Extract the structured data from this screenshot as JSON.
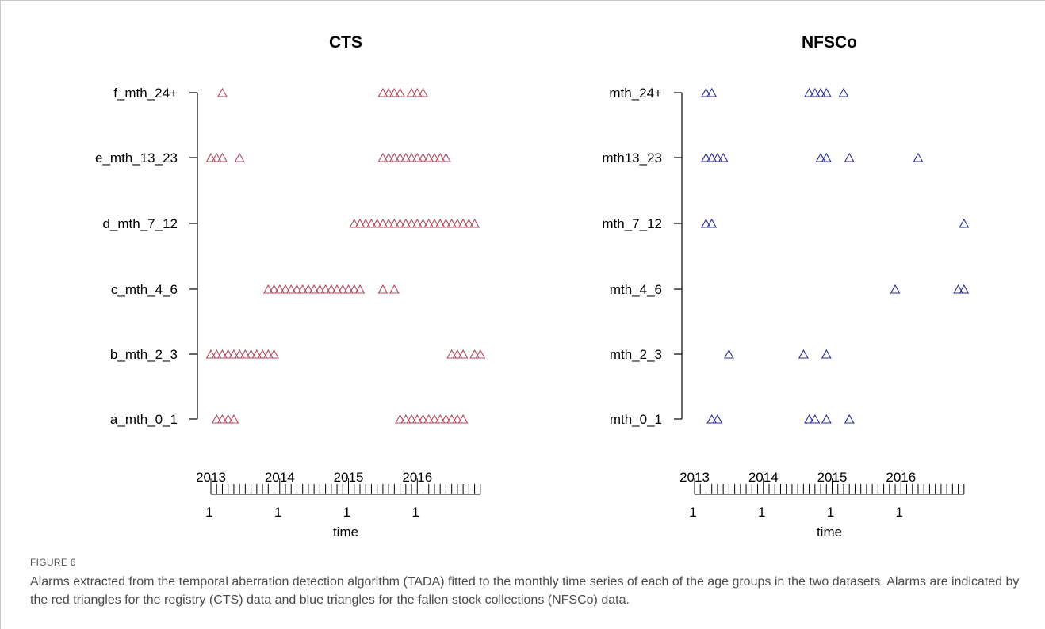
{
  "figure": {
    "label": "FIGURE 6",
    "caption": "Alarms extracted from the temporal aberration detection algorithm (TADA) fitted to the monthly time series of each of the age groups in the two datasets. Alarms are indicated by the red triangles for the registry (CTS) data and blue triangles for the fallen stock collections (NFSCo) data."
  },
  "chart_data": [
    {
      "type": "scatter",
      "title": "CTS",
      "xlabel": "time",
      "marker": "open-triangle",
      "color": "#b04a5e",
      "x_major_ticks": [
        {
          "year": "2013",
          "month_label": "1"
        },
        {
          "year": "2014",
          "month_label": "1"
        },
        {
          "year": "2015",
          "month_label": "1"
        },
        {
          "year": "2016",
          "month_label": "1"
        }
      ],
      "x_range_months": [
        1,
        48
      ],
      "categories": [
        "a_mth_0_1",
        "b_mth_2_3",
        "c_mth_4_6",
        "d_mth_7_12",
        "e_mth_13_23",
        "f_mth_24+"
      ],
      "series": [
        {
          "category": "f_mth_24+",
          "months": [
            3,
            31,
            32,
            33,
            34,
            36,
            37,
            38
          ]
        },
        {
          "category": "e_mth_13_23",
          "months": [
            1,
            2,
            3,
            6,
            31,
            32,
            33,
            34,
            35,
            36,
            37,
            38,
            39,
            40,
            41,
            42
          ]
        },
        {
          "category": "d_mth_7_12",
          "months": [
            26,
            27,
            28,
            29,
            30,
            31,
            32,
            33,
            34,
            35,
            36,
            37,
            38,
            39,
            40,
            41,
            42,
            43,
            44,
            45,
            46,
            47
          ]
        },
        {
          "category": "c_mth_4_6",
          "months": [
            11,
            12,
            13,
            14,
            15,
            16,
            17,
            18,
            19,
            20,
            21,
            22,
            23,
            24,
            25,
            26,
            27,
            31,
            33
          ]
        },
        {
          "category": "b_mth_2_3",
          "months": [
            1,
            2,
            3,
            4,
            5,
            6,
            7,
            8,
            9,
            10,
            11,
            12,
            43,
            44,
            45,
            47,
            48
          ]
        },
        {
          "category": "a_mth_0_1",
          "months": [
            2,
            3,
            4,
            5,
            34,
            35,
            36,
            37,
            38,
            39,
            40,
            41,
            42,
            43,
            44,
            45
          ]
        }
      ]
    },
    {
      "type": "scatter",
      "title": "NFSCo",
      "xlabel": "time",
      "marker": "open-triangle",
      "color": "#2a2a9a",
      "x_major_ticks": [
        {
          "year": "2013",
          "month_label": "1"
        },
        {
          "year": "2014",
          "month_label": "1"
        },
        {
          "year": "2015",
          "month_label": "1"
        },
        {
          "year": "2016",
          "month_label": "1"
        }
      ],
      "x_range_months": [
        1,
        48
      ],
      "categories": [
        "mth_0_1",
        "mth_2_3",
        "mth_4_6",
        "mth_7_12",
        "mth13_23",
        "mth_24+"
      ],
      "series": [
        {
          "category": "mth_24+",
          "months": [
            3,
            4,
            21,
            22,
            23,
            24,
            27
          ]
        },
        {
          "category": "mth13_23",
          "months": [
            3,
            4,
            5,
            6,
            23,
            24,
            28,
            40
          ]
        },
        {
          "category": "mth_7_12",
          "months": [
            3,
            4,
            48
          ]
        },
        {
          "category": "mth_4_6",
          "months": [
            36,
            47,
            48
          ]
        },
        {
          "category": "mth_2_3",
          "months": [
            7,
            20,
            24
          ]
        },
        {
          "category": "mth_0_1",
          "months": [
            4,
            5,
            21,
            22,
            24,
            28
          ]
        }
      ]
    }
  ]
}
